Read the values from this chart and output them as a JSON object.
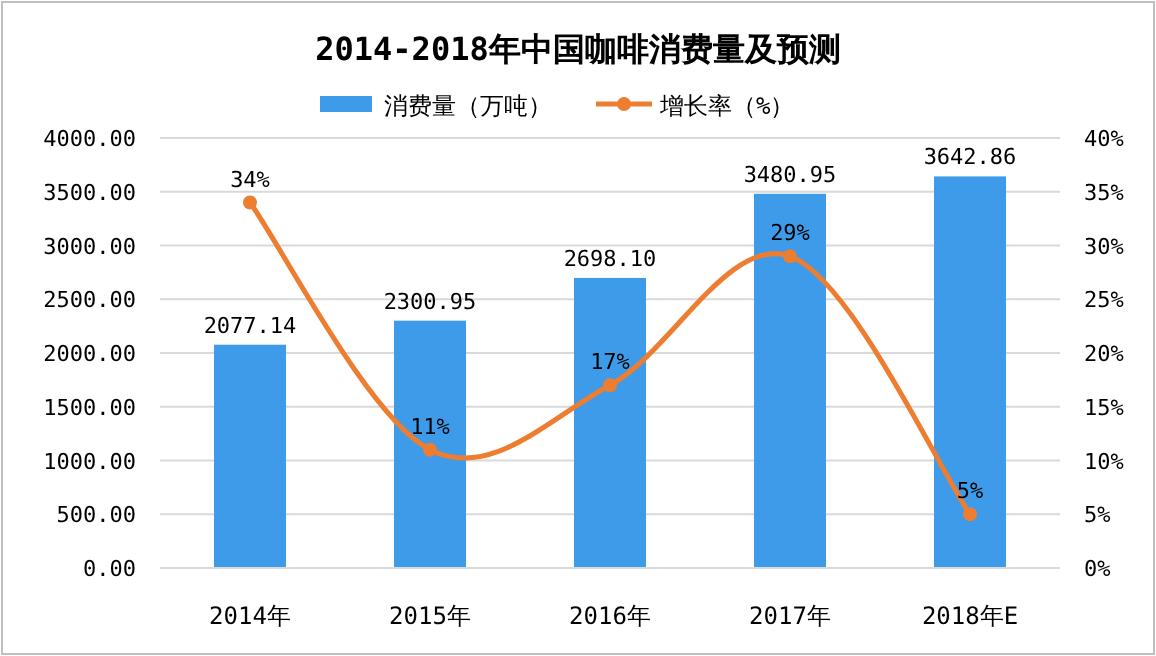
{
  "chart_data": {
    "type": "bar",
    "title": "2014-2018年中国咖啡消费量及预测",
    "categories": [
      "2014年",
      "2015年",
      "2016年",
      "2017年",
      "2018年E"
    ],
    "series": [
      {
        "name": "消费量（万吨）",
        "color": "#3d9be9",
        "values": [
          2077.14,
          2300.95,
          2698.1,
          3480.95,
          3642.86
        ],
        "value_labels": [
          "2077.14",
          "2300.95",
          "2698.10",
          "3480.95",
          "3642.86"
        ]
      },
      {
        "name": "增长率（%）",
        "type": "line",
        "axis": "y2",
        "color": "#ed7d31",
        "marker": "circle",
        "values": [
          34,
          11,
          17,
          29,
          5
        ],
        "value_labels": [
          "34%",
          "11%",
          "17%",
          "29%",
          "5%"
        ]
      }
    ],
    "ylim": [
      0,
      4000
    ],
    "yticks": [
      {
        "value": 0,
        "label": "0.00"
      },
      {
        "value": 500,
        "label": "500.00"
      },
      {
        "value": 1000,
        "label": "1000.00"
      },
      {
        "value": 1500,
        "label": "1500.00"
      },
      {
        "value": 2000,
        "label": "2000.00"
      },
      {
        "value": 2500,
        "label": "2500.00"
      },
      {
        "value": 3000,
        "label": "3000.00"
      },
      {
        "value": 3500,
        "label": "3500.00"
      },
      {
        "value": 4000,
        "label": "4000.00"
      }
    ],
    "y2lim": [
      0,
      40
    ],
    "y2ticks": [
      {
        "value": 0,
        "label": "0%"
      },
      {
        "value": 5,
        "label": "5%"
      },
      {
        "value": 10,
        "label": "10%"
      },
      {
        "value": 15,
        "label": "15%"
      },
      {
        "value": 20,
        "label": "20%"
      },
      {
        "value": 25,
        "label": "25%"
      },
      {
        "value": 30,
        "label": "30%"
      },
      {
        "value": 35,
        "label": "35%"
      },
      {
        "value": 40,
        "label": "40%"
      }
    ],
    "grid": "y",
    "legend": "top"
  }
}
